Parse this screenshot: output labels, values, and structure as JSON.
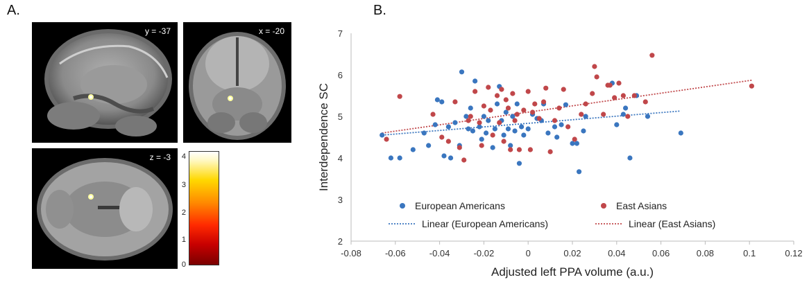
{
  "panels": {
    "a_label": "A.",
    "b_label": "B."
  },
  "brain_slices": {
    "sagittal_coord": "y = -37",
    "coronal_coord": "x = -20",
    "axial_coord": "z = -3"
  },
  "colorbar": {
    "ticks": [
      "4",
      "3",
      "2",
      "1",
      "0"
    ]
  },
  "chart_data": {
    "type": "scatter",
    "xlabel": "Adjusted left PPA volume (a.u.)",
    "ylabel": "Interdependence SC",
    "xlim": [
      -0.08,
      0.12
    ],
    "ylim": [
      2,
      7
    ],
    "xticks": [
      "-0.08",
      "-0.06",
      "-0.04",
      "-0.02",
      "0",
      "0.02",
      "0.04",
      "0.06",
      "0.08",
      "0.1",
      "0.12"
    ],
    "yticks": [
      "2",
      "3",
      "4",
      "5",
      "6",
      "7"
    ],
    "grid": false,
    "legend_position": "bottom",
    "series": [
      {
        "name": "European Americans",
        "color": "#3a76bf",
        "trend_name": "Linear (European Americans)",
        "trend": [
          [
            -0.066,
            4.55
          ],
          [
            0.069,
            5.13
          ]
        ],
        "points": [
          [
            -0.066,
            4.55
          ],
          [
            -0.062,
            4.0
          ],
          [
            -0.058,
            4.0
          ],
          [
            -0.052,
            4.2
          ],
          [
            -0.047,
            4.6
          ],
          [
            -0.045,
            4.3
          ],
          [
            -0.042,
            4.8
          ],
          [
            -0.041,
            5.4
          ],
          [
            -0.039,
            5.35
          ],
          [
            -0.038,
            4.05
          ],
          [
            -0.036,
            4.75
          ],
          [
            -0.035,
            4.0
          ],
          [
            -0.033,
            4.85
          ],
          [
            -0.031,
            4.3
          ],
          [
            -0.03,
            6.07
          ],
          [
            -0.028,
            5.0
          ],
          [
            -0.027,
            4.7
          ],
          [
            -0.026,
            5.2
          ],
          [
            -0.025,
            4.65
          ],
          [
            -0.024,
            5.85
          ],
          [
            -0.022,
            4.75
          ],
          [
            -0.021,
            4.45
          ],
          [
            -0.02,
            5.0
          ],
          [
            -0.019,
            4.6
          ],
          [
            -0.018,
            4.9
          ],
          [
            -0.016,
            4.25
          ],
          [
            -0.015,
            4.7
          ],
          [
            -0.014,
            5.3
          ],
          [
            -0.013,
            5.72
          ],
          [
            -0.012,
            4.9
          ],
          [
            -0.011,
            4.55
          ],
          [
            -0.01,
            5.1
          ],
          [
            -0.009,
            4.7
          ],
          [
            -0.008,
            4.3
          ],
          [
            -0.007,
            5.0
          ],
          [
            -0.006,
            4.65
          ],
          [
            -0.005,
            5.3
          ],
          [
            -0.004,
            3.87
          ],
          [
            -0.003,
            4.75
          ],
          [
            -0.002,
            4.55
          ],
          [
            0.0,
            4.7
          ],
          [
            0.002,
            5.05
          ],
          [
            0.004,
            4.95
          ],
          [
            0.006,
            4.9
          ],
          [
            0.007,
            5.3
          ],
          [
            0.009,
            4.6
          ],
          [
            0.012,
            4.75
          ],
          [
            0.013,
            4.5
          ],
          [
            0.015,
            4.8
          ],
          [
            0.017,
            5.28
          ],
          [
            0.02,
            4.35
          ],
          [
            0.022,
            4.35
          ],
          [
            0.023,
            3.67
          ],
          [
            0.025,
            4.65
          ],
          [
            0.026,
            5.0
          ],
          [
            0.038,
            5.8
          ],
          [
            0.04,
            4.8
          ],
          [
            0.043,
            5.05
          ],
          [
            0.044,
            5.2
          ],
          [
            0.046,
            4.0
          ],
          [
            0.049,
            5.5
          ],
          [
            0.054,
            5.0
          ],
          [
            0.069,
            4.6
          ]
        ]
      },
      {
        "name": "East Asians",
        "color": "#c0474a",
        "trend_name": "Linear (East Asians)",
        "trend": [
          [
            -0.066,
            4.6
          ],
          [
            0.101,
            5.87
          ]
        ],
        "points": [
          [
            -0.064,
            4.45
          ],
          [
            -0.058,
            5.48
          ],
          [
            -0.043,
            5.05
          ],
          [
            -0.039,
            4.5
          ],
          [
            -0.036,
            4.4
          ],
          [
            -0.033,
            5.35
          ],
          [
            -0.031,
            4.25
          ],
          [
            -0.029,
            3.95
          ],
          [
            -0.027,
            4.9
          ],
          [
            -0.026,
            5.0
          ],
          [
            -0.024,
            5.6
          ],
          [
            -0.022,
            4.85
          ],
          [
            -0.021,
            4.3
          ],
          [
            -0.02,
            5.25
          ],
          [
            -0.018,
            5.7
          ],
          [
            -0.017,
            5.15
          ],
          [
            -0.016,
            4.55
          ],
          [
            -0.014,
            5.5
          ],
          [
            -0.013,
            4.85
          ],
          [
            -0.012,
            5.65
          ],
          [
            -0.011,
            4.4
          ],
          [
            -0.01,
            5.4
          ],
          [
            -0.009,
            5.2
          ],
          [
            -0.008,
            4.2
          ],
          [
            -0.007,
            5.55
          ],
          [
            -0.006,
            4.9
          ],
          [
            -0.005,
            5.05
          ],
          [
            -0.004,
            4.2
          ],
          [
            -0.002,
            5.15
          ],
          [
            0.0,
            5.6
          ],
          [
            0.001,
            4.2
          ],
          [
            0.002,
            5.1
          ],
          [
            0.003,
            5.3
          ],
          [
            0.005,
            4.95
          ],
          [
            0.007,
            5.35
          ],
          [
            0.008,
            5.68
          ],
          [
            0.01,
            4.15
          ],
          [
            0.012,
            4.9
          ],
          [
            0.014,
            5.2
          ],
          [
            0.016,
            5.65
          ],
          [
            0.018,
            4.75
          ],
          [
            0.021,
            4.45
          ],
          [
            0.024,
            5.05
          ],
          [
            0.026,
            5.3
          ],
          [
            0.029,
            5.55
          ],
          [
            0.03,
            6.2
          ],
          [
            0.031,
            5.95
          ],
          [
            0.034,
            5.05
          ],
          [
            0.036,
            5.75
          ],
          [
            0.037,
            5.75
          ],
          [
            0.039,
            5.45
          ],
          [
            0.041,
            5.8
          ],
          [
            0.043,
            5.5
          ],
          [
            0.045,
            5.0
          ],
          [
            0.048,
            5.5
          ],
          [
            0.053,
            5.35
          ],
          [
            0.056,
            6.47
          ],
          [
            0.101,
            5.73
          ]
        ]
      }
    ]
  }
}
